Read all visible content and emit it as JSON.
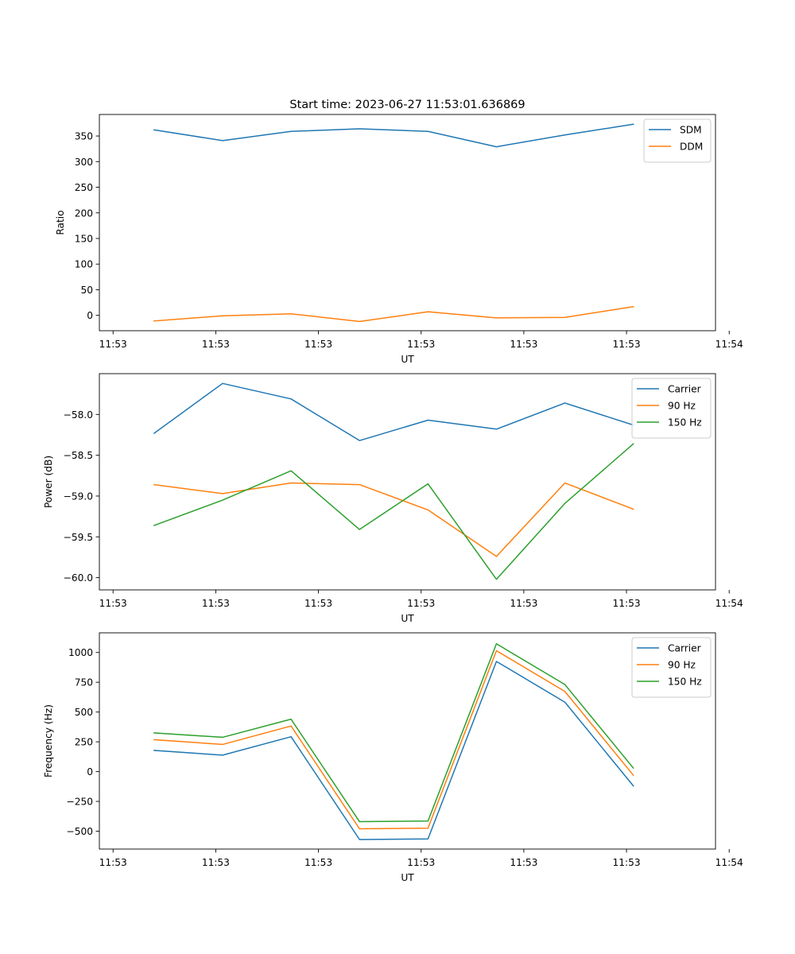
{
  "figure": {
    "title": "Start time: 2023-06-27 11:53:01.636869"
  },
  "chart_data": [
    {
      "type": "line",
      "x": [
        1,
        2,
        3,
        4,
        5,
        6,
        7,
        8
      ],
      "xlim": [
        0.2,
        9.2
      ],
      "xticks": [
        0.4,
        1.9,
        3.4,
        4.9,
        6.4,
        7.9,
        9.4
      ],
      "xtick_labels": [
        "11:53",
        "11:53",
        "11:53",
        "11:53",
        "11:53",
        "11:53",
        "11:54"
      ],
      "xlabel": "UT",
      "ylabel": "Ratio",
      "ylim": [
        -30,
        392
      ],
      "yticks": [
        0,
        50,
        100,
        150,
        200,
        250,
        300,
        350
      ],
      "ytick_labels": [
        "0",
        "50",
        "100",
        "150",
        "200",
        "250",
        "300",
        "350"
      ],
      "legend_position": "top-right",
      "series": [
        {
          "name": "SDM",
          "color": "#1f77b4",
          "values": [
            362,
            341,
            359,
            364,
            359,
            329,
            352,
            373
          ]
        },
        {
          "name": "DDM",
          "color": "#ff7f0e",
          "values": [
            -11,
            -1,
            3,
            -12,
            7,
            -5,
            -4,
            17
          ]
        }
      ]
    },
    {
      "type": "line",
      "x": [
        1,
        2,
        3,
        4,
        5,
        6,
        7,
        8
      ],
      "xlim": [
        0.2,
        9.2
      ],
      "xticks": [
        0.4,
        1.9,
        3.4,
        4.9,
        6.4,
        7.9,
        9.4
      ],
      "xtick_labels": [
        "11:53",
        "11:53",
        "11:53",
        "11:53",
        "11:53",
        "11:53",
        "11:54"
      ],
      "xlabel": "UT",
      "ylabel": "Power (dB)",
      "ylim": [
        -60.15,
        -57.5
      ],
      "yticks": [
        -60.0,
        -59.5,
        -59.0,
        -58.5,
        -58.0
      ],
      "ytick_labels": [
        "−60.0",
        "−59.5",
        "−59.0",
        "−58.5",
        "−58.0"
      ],
      "legend_position": "top-right",
      "series": [
        {
          "name": "Carrier",
          "color": "#1f77b4",
          "values": [
            -58.23,
            -57.62,
            -57.81,
            -58.32,
            -58.07,
            -58.18,
            -57.86,
            -58.13
          ]
        },
        {
          "name": "90 Hz",
          "color": "#ff7f0e",
          "values": [
            -58.86,
            -58.97,
            -58.84,
            -58.86,
            -59.17,
            -59.74,
            -58.84,
            -59.16
          ]
        },
        {
          "name": "150 Hz",
          "color": "#2ca02c",
          "values": [
            -59.36,
            -59.05,
            -58.69,
            -59.41,
            -58.85,
            -60.02,
            -59.09,
            -58.36
          ]
        }
      ]
    },
    {
      "type": "line",
      "x": [
        1,
        2,
        3,
        4,
        5,
        6,
        7,
        8
      ],
      "xlim": [
        0.2,
        9.2
      ],
      "xticks": [
        0.4,
        1.9,
        3.4,
        4.9,
        6.4,
        7.9,
        9.4
      ],
      "xtick_labels": [
        "11:53",
        "11:53",
        "11:53",
        "11:53",
        "11:53",
        "11:53",
        "11:54"
      ],
      "xlabel": "UT",
      "ylabel": "Frequency (Hz)",
      "ylim": [
        -650,
        1165
      ],
      "yticks": [
        -500,
        -250,
        0,
        250,
        500,
        750,
        1000
      ],
      "ytick_labels": [
        "−500",
        "−250",
        "0",
        "250",
        "500",
        "750",
        "1000"
      ],
      "legend_position": "top-right",
      "series": [
        {
          "name": "Carrier",
          "color": "#1f77b4",
          "values": [
            178,
            138,
            293,
            -570,
            -565,
            925,
            583,
            -120
          ]
        },
        {
          "name": "90 Hz",
          "color": "#ff7f0e",
          "values": [
            268,
            228,
            383,
            -480,
            -475,
            1015,
            673,
            -30
          ]
        },
        {
          "name": "150 Hz",
          "color": "#2ca02c",
          "values": [
            325,
            288,
            440,
            -420,
            -415,
            1073,
            731,
            30
          ]
        }
      ]
    }
  ]
}
